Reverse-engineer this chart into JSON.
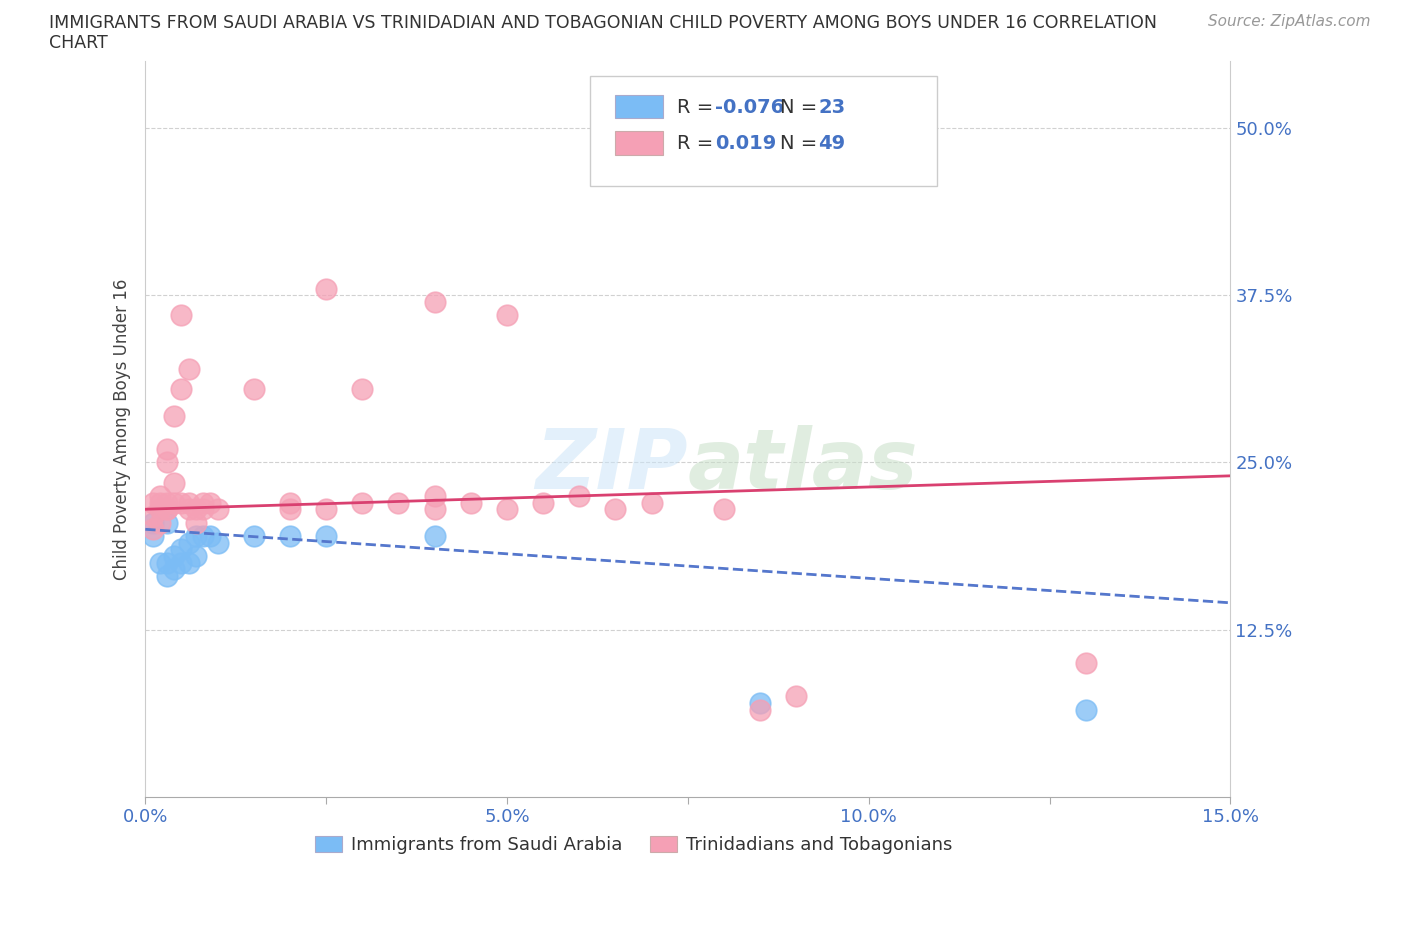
{
  "title_line1": "IMMIGRANTS FROM SAUDI ARABIA VS TRINIDADIAN AND TOBAGONIAN CHILD POVERTY AMONG BOYS UNDER 16 CORRELATION",
  "title_line2": "CHART",
  "source": "Source: ZipAtlas.com",
  "ylabel": "Child Poverty Among Boys Under 16",
  "xlabel_blue": "Immigrants from Saudi Arabia",
  "xlabel_pink": "Trinidadians and Tobagonians",
  "xlim": [
    0.0,
    0.15
  ],
  "ylim": [
    0.0,
    0.55
  ],
  "xticks": [
    0.0,
    0.025,
    0.05,
    0.075,
    0.1,
    0.125,
    0.15
  ],
  "xtick_labels": [
    "0.0%",
    "",
    "5.0%",
    "",
    "10.0%",
    "",
    "15.0%"
  ],
  "yticks": [
    0.125,
    0.25,
    0.375,
    0.5
  ],
  "ytick_labels": [
    "12.5%",
    "25.0%",
    "37.5%",
    "50.0%"
  ],
  "blue_R": -0.076,
  "blue_N": 23,
  "pink_R": 0.019,
  "pink_N": 49,
  "blue_color": "#7bbcf5",
  "pink_color": "#f5a0b5",
  "blue_line_color": "#5577cc",
  "pink_line_color": "#d94070",
  "blue_scatter": [
    [
      0.001,
      0.205
    ],
    [
      0.001,
      0.195
    ],
    [
      0.002,
      0.175
    ],
    [
      0.003,
      0.175
    ],
    [
      0.003,
      0.165
    ],
    [
      0.003,
      0.205
    ],
    [
      0.004,
      0.18
    ],
    [
      0.004,
      0.17
    ],
    [
      0.005,
      0.175
    ],
    [
      0.005,
      0.185
    ],
    [
      0.006,
      0.19
    ],
    [
      0.006,
      0.175
    ],
    [
      0.007,
      0.195
    ],
    [
      0.007,
      0.18
    ],
    [
      0.008,
      0.195
    ],
    [
      0.009,
      0.195
    ],
    [
      0.01,
      0.19
    ],
    [
      0.015,
      0.195
    ],
    [
      0.02,
      0.195
    ],
    [
      0.025,
      0.195
    ],
    [
      0.04,
      0.195
    ],
    [
      0.085,
      0.07
    ],
    [
      0.13,
      0.065
    ]
  ],
  "pink_scatter": [
    [
      0.001,
      0.21
    ],
    [
      0.001,
      0.22
    ],
    [
      0.001,
      0.2
    ],
    [
      0.002,
      0.215
    ],
    [
      0.002,
      0.225
    ],
    [
      0.002,
      0.22
    ],
    [
      0.002,
      0.205
    ],
    [
      0.003,
      0.22
    ],
    [
      0.003,
      0.215
    ],
    [
      0.003,
      0.215
    ],
    [
      0.003,
      0.25
    ],
    [
      0.003,
      0.26
    ],
    [
      0.004,
      0.285
    ],
    [
      0.004,
      0.235
    ],
    [
      0.004,
      0.22
    ],
    [
      0.005,
      0.305
    ],
    [
      0.005,
      0.22
    ],
    [
      0.005,
      0.36
    ],
    [
      0.006,
      0.215
    ],
    [
      0.006,
      0.22
    ],
    [
      0.006,
      0.32
    ],
    [
      0.007,
      0.215
    ],
    [
      0.007,
      0.205
    ],
    [
      0.008,
      0.215
    ],
    [
      0.008,
      0.22
    ],
    [
      0.009,
      0.22
    ],
    [
      0.01,
      0.215
    ],
    [
      0.015,
      0.305
    ],
    [
      0.02,
      0.215
    ],
    [
      0.02,
      0.22
    ],
    [
      0.025,
      0.215
    ],
    [
      0.025,
      0.38
    ],
    [
      0.03,
      0.22
    ],
    [
      0.03,
      0.305
    ],
    [
      0.035,
      0.22
    ],
    [
      0.04,
      0.37
    ],
    [
      0.04,
      0.225
    ],
    [
      0.04,
      0.215
    ],
    [
      0.045,
      0.22
    ],
    [
      0.05,
      0.36
    ],
    [
      0.05,
      0.215
    ],
    [
      0.055,
      0.22
    ],
    [
      0.06,
      0.225
    ],
    [
      0.065,
      0.215
    ],
    [
      0.07,
      0.22
    ],
    [
      0.08,
      0.215
    ],
    [
      0.085,
      0.065
    ],
    [
      0.09,
      0.075
    ],
    [
      0.13,
      0.1
    ]
  ],
  "watermark": "ZIPatlas",
  "background_color": "#ffffff",
  "grid_color": "#cccccc",
  "blue_trend": [
    0.0,
    0.15,
    0.2,
    0.145
  ],
  "pink_trend": [
    0.0,
    0.15,
    0.215,
    0.24
  ]
}
